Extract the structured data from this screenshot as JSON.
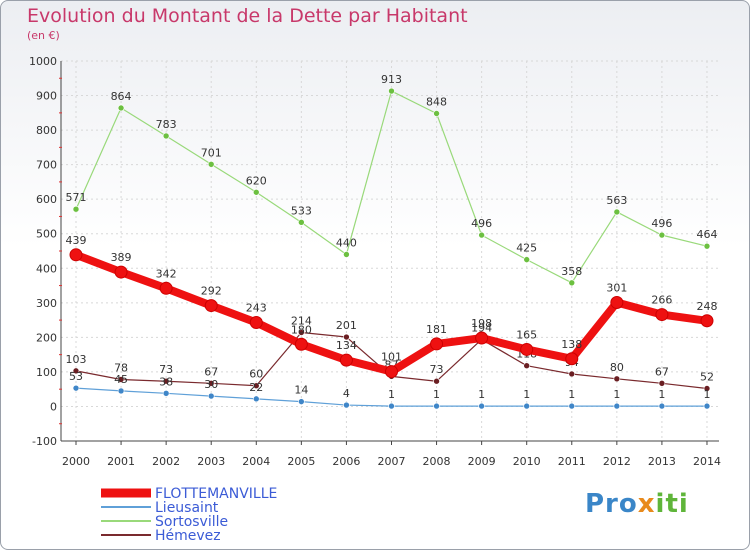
{
  "title": "Evolution du Montant de la Dette par Habitant",
  "subtitle": "(en €)",
  "logo": {
    "part1": "Pro",
    "part2": "x",
    "part3": "iti"
  },
  "chart_data": {
    "type": "line",
    "x": [
      "2000",
      "2001",
      "2002",
      "2003",
      "2004",
      "2005",
      "2006",
      "2007",
      "2008",
      "2009",
      "2010",
      "2011",
      "2012",
      "2013",
      "2014"
    ],
    "ylim": [
      -100,
      1000
    ],
    "yticks": [
      -100,
      0,
      100,
      200,
      300,
      400,
      500,
      600,
      700,
      800,
      900,
      1000
    ],
    "legend_position": "bottom-left",
    "series": [
      {
        "name": "Sortosville",
        "color": "#99d97a",
        "marker": "#6cc040",
        "width": 1.2,
        "r": 3,
        "values": [
          571,
          864,
          783,
          701,
          620,
          533,
          440,
          913,
          848,
          496,
          425,
          358,
          563,
          496,
          464
        ],
        "labels": [
          "571",
          "864",
          "783",
          "701",
          "620",
          "533",
          "440",
          "913",
          "848",
          "496",
          "425",
          "358",
          "563",
          "496",
          "464"
        ]
      },
      {
        "name": "Hémevez",
        "color": "#7a2a2e",
        "marker": "#6a1e22",
        "width": 1.2,
        "r": 3,
        "values": [
          103,
          78,
          73,
          67,
          60,
          214,
          201,
          87,
          73,
          194,
          118,
          94,
          80,
          67,
          52
        ],
        "labels": [
          "103",
          "78",
          "73",
          "67",
          "60",
          "214",
          "201",
          "87",
          "73",
          "194",
          "118",
          "94",
          "80",
          "67",
          "52"
        ]
      },
      {
        "name": "Lieusaint",
        "color": "#5fa0d8",
        "marker": "#3f86c8",
        "width": 1.2,
        "r": 3,
        "values": [
          53,
          45,
          38,
          30,
          22,
          14,
          4,
          1,
          1,
          1,
          1,
          1,
          1,
          1,
          1
        ],
        "labels": [
          "53",
          "45",
          "38",
          "30",
          "22",
          "14",
          "4",
          "1",
          "1",
          "1",
          "1",
          "1",
          "1",
          "1",
          "1"
        ]
      },
      {
        "name": "FLOTTEMANVILLE",
        "color": "#ee1111",
        "marker": "#ee1111",
        "width": 8,
        "r": 6,
        "values": [
          439,
          389,
          342,
          292,
          243,
          180,
          134,
          101,
          181,
          198,
          165,
          138,
          301,
          266,
          248
        ],
        "labels": [
          "439",
          "389",
          "342",
          "292",
          "243",
          "180",
          "134",
          "101",
          "181",
          "198",
          "165",
          "138",
          "301",
          "266",
          "248"
        ]
      }
    ],
    "legend": [
      {
        "name": "FLOTTEMANVILLE",
        "color": "#ee1111",
        "width": 9,
        "text_color": "#3b5bd6"
      },
      {
        "name": "Lieusaint",
        "color": "#5fa0d8",
        "width": 2,
        "text_color": "#3b5bd6"
      },
      {
        "name": "Sortosville",
        "color": "#99d97a",
        "width": 2,
        "text_color": "#3b5bd6"
      },
      {
        "name": "Hémevez",
        "color": "#7a2a2e",
        "width": 2,
        "text_color": "#3b5bd6"
      }
    ]
  }
}
